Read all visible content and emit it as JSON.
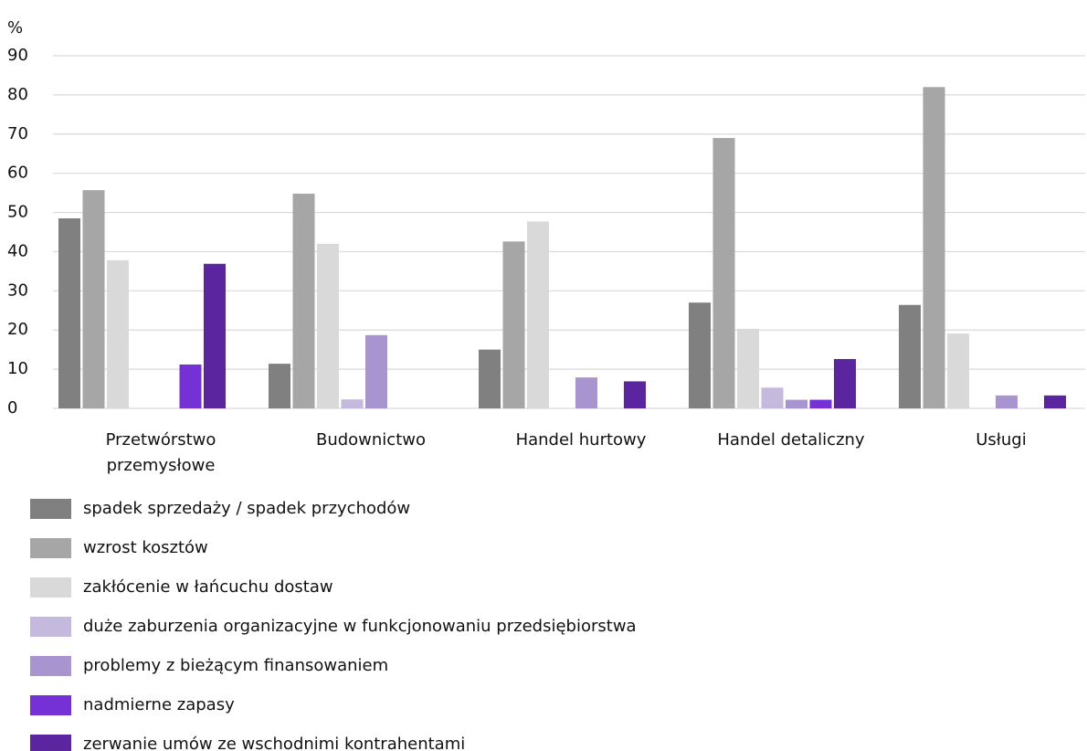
{
  "chart_data": {
    "type": "bar",
    "y_axis_label": "%",
    "categories": [
      "Przetwórstwo przemysłowe",
      "Budownictwo",
      "Handel hurtowy",
      "Handel detaliczny",
      "Usługi"
    ],
    "series": [
      {
        "name": "spadek sprzedaży / spadek przychodów",
        "color": "#808080",
        "values": [
          48.5,
          11.4,
          15,
          27,
          26.4
        ]
      },
      {
        "name": "wzrost kosztów",
        "color": "#a6a6a6",
        "values": [
          55.7,
          54.8,
          42.6,
          69,
          82
        ]
      },
      {
        "name": "zakłócenie w łańcuchu dostaw",
        "color": "#d9d9d9",
        "values": [
          37.8,
          42,
          47.7,
          20.3,
          19.1
        ]
      },
      {
        "name": "duże zaburzenia organizacyjne w funkcjonowaniu przedsiębiorstwa",
        "color": "#c5b9de",
        "values": [
          0,
          2.3,
          0,
          5.3,
          0
        ]
      },
      {
        "name": "problemy z bieżącym finansowaniem",
        "color": "#a894cf",
        "values": [
          0,
          18.7,
          7.9,
          2.2,
          3.3
        ]
      },
      {
        "name": "nadmierne zapasy",
        "color": "#7531d6",
        "values": [
          11.2,
          0,
          0,
          2.2,
          0
        ]
      },
      {
        "name": "zerwanie umów ze wschodnimi kontrahentami",
        "color": "#5a259e",
        "values": [
          36.9,
          0,
          6.9,
          12.6,
          3.3
        ]
      }
    ],
    "ylim": [
      0,
      90
    ],
    "yticks": [
      0,
      10,
      20,
      30,
      40,
      50,
      60,
      70,
      80,
      90
    ],
    "grid": true
  }
}
